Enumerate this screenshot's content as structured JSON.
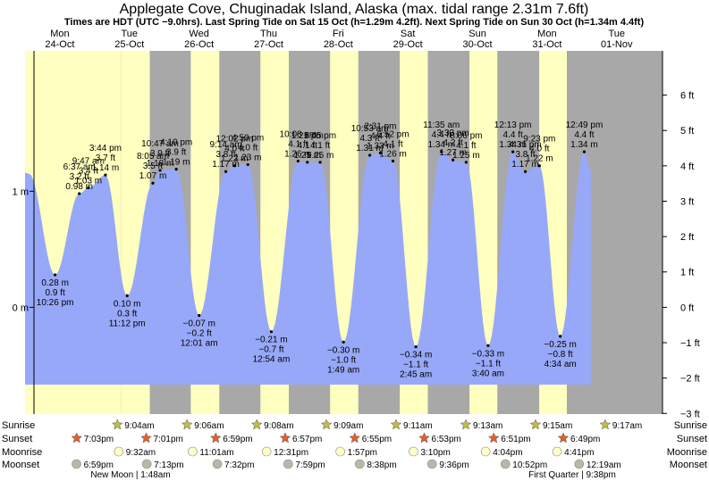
{
  "header": {
    "title": "Applegate Cove, Chuginadak Island, Alaska (max. tidal range 2.31m 7.6ft)",
    "subtitle": "Times are HDT (UTC −9.0hrs). Last Spring Tide on Sat 15 Oct (h=1.29m 4.2ft). Next Spring Tide on Sun 30 Oct (h=1.34m 4.4ft)"
  },
  "colors": {
    "day": "#ffffc0",
    "night": "#a8a8a8",
    "tide": "#98a8f8",
    "day_label": "#cc0000",
    "sun_marker": "#c0c040",
    "sunset_marker": "#e06030",
    "moonrise_marker": "#ffffc8",
    "moonset_marker": "#b8b8a8"
  },
  "days": [
    {
      "dow": "Mon",
      "date": "24-Oct"
    },
    {
      "dow": "Tue",
      "date": "25-Oct"
    },
    {
      "dow": "Wed",
      "date": "26-Oct"
    },
    {
      "dow": "Thu",
      "date": "27-Oct"
    },
    {
      "dow": "Fri",
      "date": "28-Oct"
    },
    {
      "dow": "Sat",
      "date": "29-Oct"
    },
    {
      "dow": "Sun",
      "date": "30-Oct"
    },
    {
      "dow": "Mon",
      "date": "31-Oct"
    },
    {
      "dow": "Tue",
      "date": "01-Nov"
    }
  ],
  "row_labels": {
    "sunrise": "Sunrise",
    "sunset": "Sunset",
    "moonrise": "Moonrise",
    "moonset": "Moonset"
  },
  "sunrise": [
    "9:04am",
    "9:06am",
    "9:08am",
    "9:09am",
    "9:11am",
    "9:13am",
    "9:15am",
    "9:17am"
  ],
  "sunset": [
    "7:03pm",
    "7:01pm",
    "6:59pm",
    "6:57pm",
    "6:55pm",
    "6:53pm",
    "6:51pm",
    "6:49pm"
  ],
  "moonrise": [
    "9:32am",
    "11:01am",
    "12:31pm",
    "1:57pm",
    "3:10pm",
    "4:04pm",
    "4:41pm"
  ],
  "moonset": [
    "6:59pm",
    "7:13pm",
    "7:32pm",
    "7:59pm",
    "8:38pm",
    "9:36pm",
    "10:52pm",
    "12:19am"
  ],
  "moon_phases": [
    "New Moon | 1:48am",
    "First Quarter | 9:38pm"
  ],
  "chart_data": {
    "type": "area",
    "title": "Applegate Cove, Chuginadak Island, Alaska (max. tidal range 2.31m 7.6ft)",
    "xlabel": "",
    "ylabel": "",
    "units": "m",
    "y_left": {
      "range": [
        -0.92,
        2.21
      ],
      "ticks": [
        {
          "v": 1,
          "label": "1 m"
        },
        {
          "v": 0,
          "label": "0 m"
        }
      ]
    },
    "y_right": {
      "ticks": [
        "6 ft",
        "5 ft",
        "4 ft",
        "3 ft",
        "2 ft",
        "1 ft",
        "0 ft",
        "−1 ft",
        "−2 ft",
        "−3 ft"
      ]
    },
    "x_range_days": [
      0.0,
      8.55
    ],
    "series": [
      {
        "values": [
          {
            "day": 0.0,
            "m": 1.16
          },
          {
            "day": 0.06,
            "m": 1.15
          },
          {
            "day": 0.432,
            "m": 0.28,
            "ft": "0.9 ft",
            "time": "10:26 pm"
          },
          {
            "day": 0.78,
            "m": 0.98,
            "ft": "3.2 ft",
            "time": "6:37 am"
          },
          {
            "day": 0.91,
            "m": 1.03,
            "ft": "3.4 ft",
            "time": "9:47 am"
          },
          {
            "day": 1.155,
            "m": 1.14,
            "ft": "3.7 ft",
            "time": "3:44 pm"
          },
          {
            "day": 1.467,
            "m": 0.1,
            "ft": "0.3 ft",
            "time": "11:12 pm"
          },
          {
            "day": 1.837,
            "m": 1.07,
            "ft": "3.5 ft",
            "time": "8:05 am"
          },
          {
            "day": 1.94,
            "m": 1.18,
            "ft": "3.9 ft",
            "time": "10:47 am"
          },
          {
            "day": 2.173,
            "m": 1.19,
            "ft": "3.9 ft",
            "time": "4:10 pm"
          },
          {
            "day": 2.501,
            "m": -0.07,
            "ft": "−0.2 ft",
            "time": "12:01 am"
          },
          {
            "day": 2.885,
            "m": 1.17,
            "ft": "3.8 ft",
            "time": "9:14 am"
          },
          {
            "day": 3.01,
            "m": 1.22,
            "ft": "4.0 ft",
            "time": "12:02 pm"
          },
          {
            "day": 3.201,
            "m": 1.23,
            "ft": "4.0 ft",
            "time": "4:50 pm"
          },
          {
            "day": 3.538,
            "m": -0.21,
            "ft": "−0.7 ft",
            "time": "12:54 am"
          },
          {
            "day": 3.923,
            "m": 1.26,
            "ft": "4.1 ft",
            "time": "10:08 am"
          },
          {
            "day": 4.056,
            "m": 1.25,
            "ft": "4.1 ft",
            "time": "1:21 pm"
          },
          {
            "day": 4.24,
            "m": 1.25,
            "ft": "4.1 ft",
            "time": "5:45 pm"
          },
          {
            "day": 4.575,
            "m": -0.3,
            "ft": "−1.0 ft",
            "time": "1:49 am"
          },
          {
            "day": 4.953,
            "m": 1.31,
            "ft": "4.3 ft",
            "time": "10:53 am"
          },
          {
            "day": 5.105,
            "m": 1.33,
            "ft": "4.4 ft",
            "time": "2:31 pm"
          },
          {
            "day": 5.286,
            "m": 1.26,
            "ft": "4.1 ft",
            "time": "6:52 pm"
          },
          {
            "day": 5.615,
            "m": -0.34,
            "ft": "−1.1 ft",
            "time": "2:45 am"
          },
          {
            "day": 5.983,
            "m": 1.34,
            "ft": "4.4 ft",
            "time": "11:35 am"
          },
          {
            "day": 6.148,
            "m": 1.27,
            "ft": "4.2 ft",
            "time": "3:33 pm"
          },
          {
            "day": 6.338,
            "m": 1.25,
            "ft": "4.1 ft",
            "time": "8:06 pm"
          },
          {
            "day": 6.653,
            "m": -0.33,
            "ft": "−1.1 ft",
            "time": "3:40 am"
          },
          {
            "day": 7.009,
            "m": 1.34,
            "ft": "4.4 ft",
            "time": "12:13 pm"
          },
          {
            "day": 7.188,
            "m": 1.17,
            "ft": "3.8 ft",
            "time": "4:31 pm"
          },
          {
            "day": 7.39,
            "m": 1.22,
            "ft": "4.0 ft",
            "time": "9:23 pm"
          },
          {
            "day": 7.69,
            "m": -0.25,
            "ft": "−0.8 ft",
            "time": "4:34 am"
          },
          {
            "day": 8.034,
            "m": 1.34,
            "ft": "4.4 ft",
            "time": "12:49 pm"
          },
          {
            "day": 8.13,
            "m": 1.18
          }
        ]
      }
    ]
  }
}
